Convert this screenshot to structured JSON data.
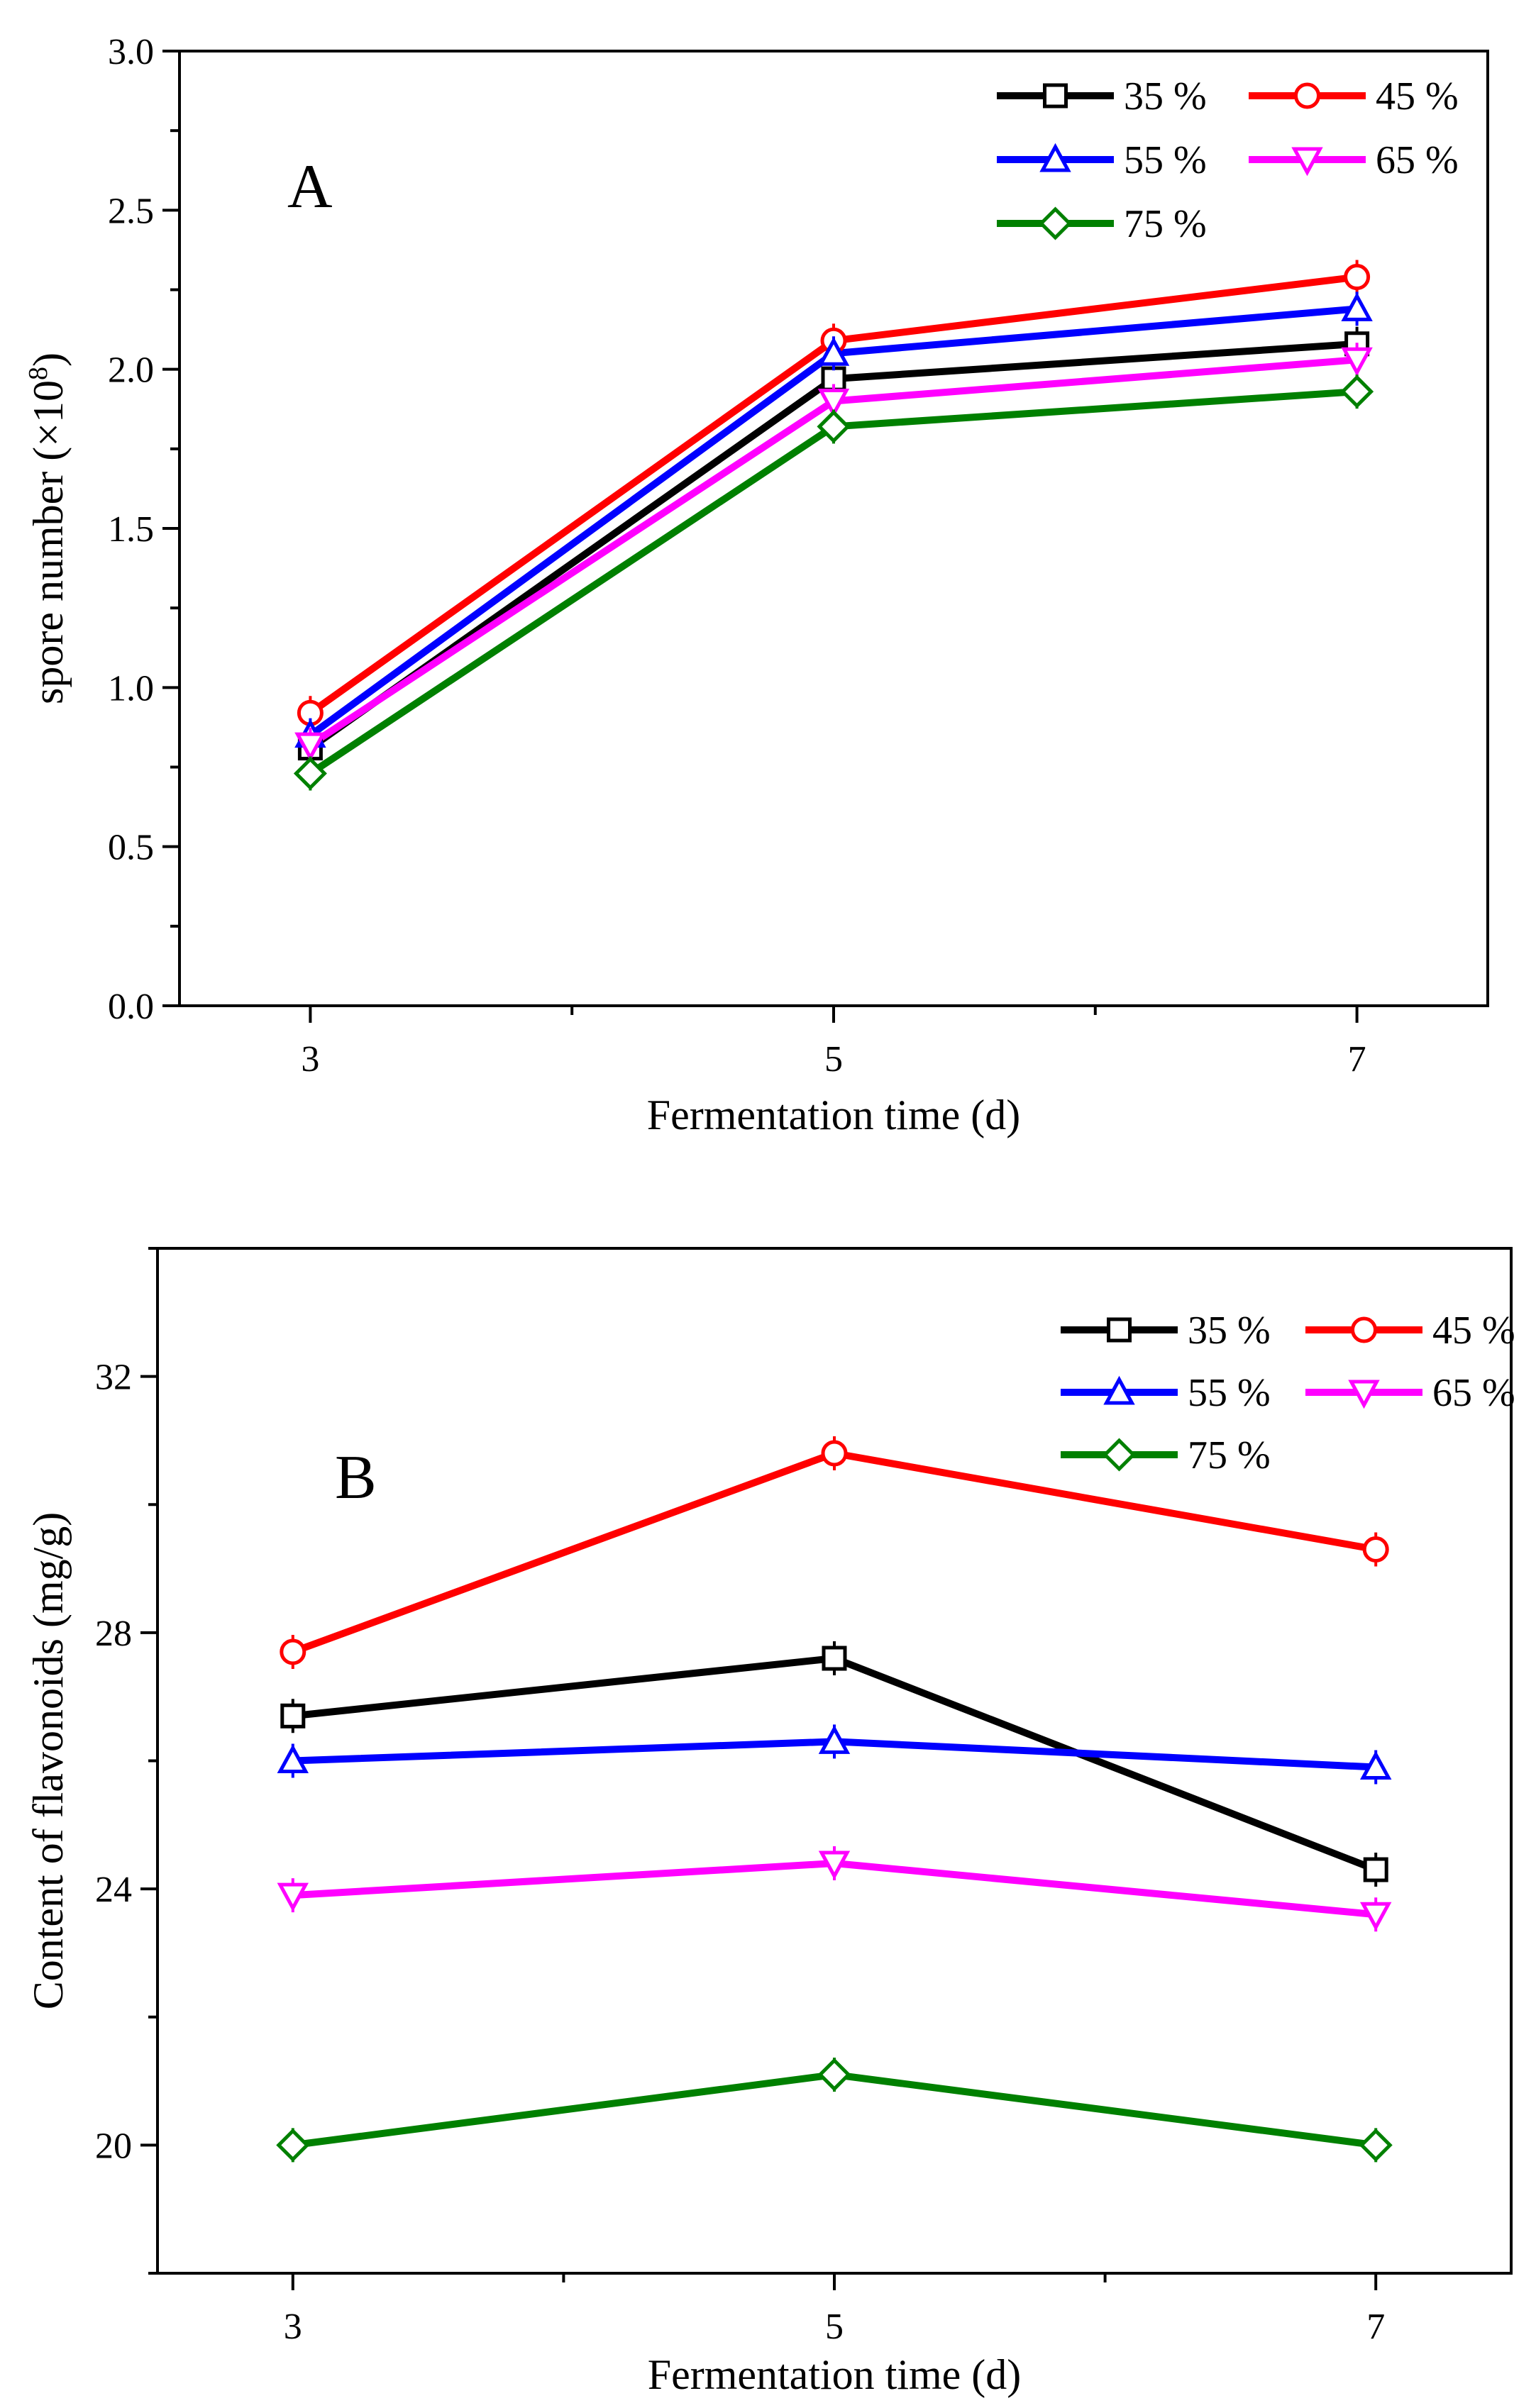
{
  "chart_data": [
    {
      "type": "line",
      "panel_label": "A",
      "xlabel": "Fermentation time (d)",
      "ylabel": "spore number (×10",
      "ylabel_superscript": "8",
      "ylabel_close": ")",
      "x": [
        3,
        5,
        7
      ],
      "x_ticks": [
        "3",
        "5",
        "7"
      ],
      "ylim": [
        0.0,
        3.0
      ],
      "y_ticks": [
        "0.0",
        "0.5",
        "1.0",
        "1.5",
        "2.0",
        "2.5",
        "3.0"
      ],
      "legend_position": "top-right",
      "series": [
        {
          "name": "35 %",
          "color": "#000000",
          "marker": "square",
          "values": [
            0.81,
            1.97,
            2.08
          ]
        },
        {
          "name": "45 %",
          "color": "#ff0000",
          "marker": "circle",
          "values": [
            0.92,
            2.09,
            2.29
          ]
        },
        {
          "name": "55 %",
          "color": "#0000ff",
          "marker": "triangle-up",
          "values": [
            0.85,
            2.05,
            2.19
          ]
        },
        {
          "name": "65 %",
          "color": "#ff00ff",
          "marker": "triangle-down",
          "values": [
            0.82,
            1.9,
            2.03
          ]
        },
        {
          "name": "75 %",
          "color": "#008000",
          "marker": "diamond",
          "values": [
            0.73,
            1.82,
            1.93
          ]
        }
      ]
    },
    {
      "type": "line",
      "panel_label": "B",
      "xlabel": "Fermentation time (d)",
      "ylabel": "Content of flavonoids (mg/g)",
      "x": [
        3,
        5,
        7
      ],
      "x_ticks": [
        "3",
        "5",
        "7"
      ],
      "ylim": [
        18.0,
        34.0
      ],
      "y_ticks": [
        "20",
        "24",
        "28",
        "32"
      ],
      "legend_position": "top-right",
      "series": [
        {
          "name": "35 %",
          "color": "#000000",
          "marker": "square",
          "values": [
            26.7,
            27.6,
            24.3
          ]
        },
        {
          "name": "45 %",
          "color": "#ff0000",
          "marker": "circle",
          "values": [
            27.7,
            30.8,
            29.3
          ]
        },
        {
          "name": "55 %",
          "color": "#0000ff",
          "marker": "triangle-up",
          "values": [
            26.0,
            26.3,
            25.9
          ]
        },
        {
          "name": "65 %",
          "color": "#ff00ff",
          "marker": "triangle-down",
          "values": [
            23.9,
            24.4,
            23.6
          ]
        },
        {
          "name": "75 %",
          "color": "#008000",
          "marker": "diamond",
          "values": [
            20.0,
            21.1,
            20.0
          ]
        }
      ]
    }
  ]
}
